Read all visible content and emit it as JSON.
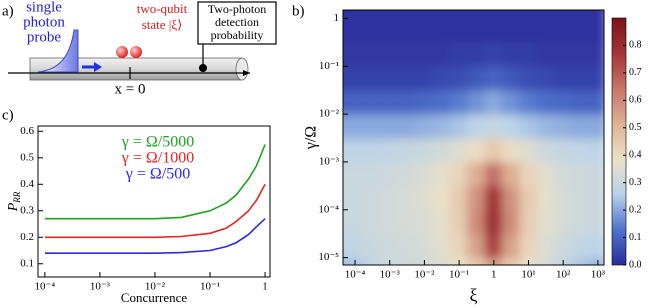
{
  "panel_a": {
    "label": "a)",
    "probe": [
      "single",
      "photon",
      "probe"
    ],
    "state": [
      "two-qubit",
      "state |ξ⟩"
    ],
    "detector": [
      "Two-photon",
      "detection",
      "probability"
    ],
    "position": "x = 0"
  },
  "chart_data": [
    {
      "type": "line",
      "label": "c)",
      "xlabel": "Concurrence",
      "ylabel": {
        "main": "P",
        "sub": "RR"
      },
      "xscale": "log",
      "x": [
        0.0001,
        0.001,
        0.01,
        0.03,
        0.1,
        0.2,
        0.3,
        0.5,
        0.7,
        1
      ],
      "xlim": [
        7.5e-05,
        1.23
      ],
      "xticks": [
        {
          "value": 0.0001,
          "label": "10⁻⁴"
        },
        {
          "value": 0.001,
          "label": "10⁻³"
        },
        {
          "value": 0.01,
          "label": "10⁻²"
        },
        {
          "value": 0.1,
          "label": "10⁻¹"
        },
        1
      ],
      "ylim": [
        0.05,
        0.62
      ],
      "yticks": [
        0.1,
        0.2,
        0.3,
        0.4,
        0.5,
        0.6
      ],
      "series": [
        {
          "name": "γ = Ω/5000",
          "color": "#1fa21f",
          "values": [
            0.27,
            0.27,
            0.27,
            0.275,
            0.3,
            0.33,
            0.36,
            0.42,
            0.47,
            0.55
          ]
        },
        {
          "name": "γ = Ω/1000",
          "color": "#e8231f",
          "values": [
            0.2,
            0.2,
            0.2,
            0.203,
            0.215,
            0.235,
            0.26,
            0.3,
            0.34,
            0.4
          ]
        },
        {
          "name": "γ = Ω/500",
          "color": "#2a2ae0",
          "values": [
            0.14,
            0.14,
            0.14,
            0.142,
            0.15,
            0.165,
            0.18,
            0.21,
            0.24,
            0.27
          ]
        }
      ]
    },
    {
      "type": "heatmap",
      "label": "b)",
      "xlabel": "ξ",
      "ylabel": "γ/Ω",
      "xscale": "log",
      "yscale": "log",
      "xlim": [
        4.5e-05,
        1500
      ],
      "ylim": [
        7e-06,
        1.5
      ],
      "xticks": [
        {
          "value": 0.0001,
          "label": "10⁻⁴"
        },
        {
          "value": 0.001,
          "label": "10⁻³"
        },
        {
          "value": 0.01,
          "label": "10⁻²"
        },
        {
          "value": 0.1,
          "label": "10⁻¹"
        },
        1,
        {
          "value": 10,
          "label": "10¹"
        },
        {
          "value": 100,
          "label": "10²"
        },
        {
          "value": 1000,
          "label": "10³"
        }
      ],
      "yticks": [
        {
          "value": 1e-05,
          "label": "10⁻⁵"
        },
        {
          "value": 0.0001,
          "label": "10⁻⁴"
        },
        {
          "value": 0.001,
          "label": "10⁻³"
        },
        {
          "value": 0.01,
          "label": "10⁻²"
        },
        {
          "value": 0.1,
          "label": "10⁻¹"
        },
        1
      ],
      "xbins": [
        1.78e-05,
        5.62e-05,
        0.000178,
        0.000562,
        0.00178,
        0.00562,
        0.0178,
        0.0562,
        0.178,
        0.562,
        1.78,
        5.62,
        17.8,
        56.2,
        178,
        562,
        1778
      ],
      "ybins": [
        3.16e-06,
        1e-05,
        3.16e-05,
        0.0001,
        0.000316,
        0.001,
        0.00316,
        0.01,
        0.0316,
        0.1,
        0.316,
        1,
        3.16
      ],
      "z": [
        [
          0.22,
          0.24,
          0.28,
          0.3,
          0.31,
          0.32,
          0.34,
          0.38,
          0.45,
          0.55,
          0.45,
          0.38,
          0.33,
          0.29,
          0.24,
          0.22
        ],
        [
          0.27,
          0.28,
          0.3,
          0.31,
          0.32,
          0.33,
          0.36,
          0.42,
          0.55,
          0.75,
          0.55,
          0.42,
          0.35,
          0.31,
          0.28,
          0.27
        ],
        [
          0.3,
          0.3,
          0.31,
          0.32,
          0.33,
          0.34,
          0.37,
          0.44,
          0.6,
          0.8,
          0.6,
          0.44,
          0.36,
          0.33,
          0.31,
          0.3
        ],
        [
          0.3,
          0.3,
          0.31,
          0.32,
          0.33,
          0.35,
          0.38,
          0.45,
          0.58,
          0.78,
          0.58,
          0.45,
          0.37,
          0.33,
          0.31,
          0.3
        ],
        [
          0.3,
          0.3,
          0.3,
          0.31,
          0.32,
          0.34,
          0.37,
          0.42,
          0.52,
          0.65,
          0.52,
          0.42,
          0.36,
          0.32,
          0.31,
          0.3
        ],
        [
          0.27,
          0.27,
          0.27,
          0.28,
          0.29,
          0.3,
          0.32,
          0.35,
          0.4,
          0.45,
          0.4,
          0.35,
          0.31,
          0.29,
          0.28,
          0.27
        ],
        [
          0.2,
          0.2,
          0.2,
          0.2,
          0.2,
          0.21,
          0.22,
          0.24,
          0.27,
          0.29,
          0.27,
          0.24,
          0.22,
          0.21,
          0.2,
          0.2
        ],
        [
          0.1,
          0.1,
          0.1,
          0.1,
          0.1,
          0.11,
          0.12,
          0.14,
          0.17,
          0.2,
          0.17,
          0.14,
          0.12,
          0.11,
          0.1,
          0.1
        ],
        [
          0.04,
          0.04,
          0.04,
          0.04,
          0.04,
          0.04,
          0.05,
          0.06,
          0.08,
          0.1,
          0.08,
          0.06,
          0.05,
          0.04,
          0.04,
          0.04
        ],
        [
          0.02,
          0.02,
          0.02,
          0.02,
          0.02,
          0.02,
          0.02,
          0.03,
          0.03,
          0.04,
          0.03,
          0.03,
          0.02,
          0.02,
          0.02,
          0.02
        ],
        [
          0.01,
          0.01,
          0.01,
          0.01,
          0.01,
          0.01,
          0.01,
          0.01,
          0.01,
          0.01,
          0.01,
          0.01,
          0.01,
          0.01,
          0.01,
          0.01
        ],
        [
          0.01,
          0.01,
          0.01,
          0.01,
          0.01,
          0.01,
          0.01,
          0.01,
          0.01,
          0.01,
          0.01,
          0.01,
          0.01,
          0.01,
          0.01,
          0.01
        ]
      ],
      "zlim": [
        0,
        0.9
      ],
      "zticks": [
        {
          "value": 0,
          "label": "0.0"
        },
        0.1,
        0.2,
        0.3,
        0.4,
        0.5,
        0.6,
        0.7,
        0.8
      ],
      "colormap": [
        "#2a2c9c",
        "#4f73cc",
        "#b8d2ea",
        "#ebe1c7",
        "#deb296",
        "#c7756a",
        "#a43538",
        "#7a1218"
      ]
    }
  ]
}
